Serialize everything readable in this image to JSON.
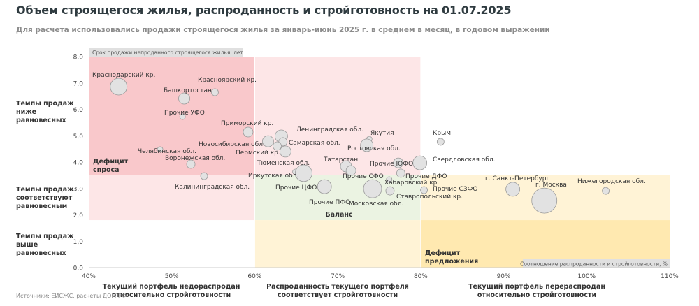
{
  "title": "Объем строящегося жилья, распроданность и стройготовность на 01.07.2025",
  "subtitle": "Для расчета использовались продажи строящегося жилья за январь-июнь 2025 г. в среднем в месяц, в годовом выражении",
  "source": "Источники: ЕИСЖС, расчеты ДОМ.РФ",
  "row_labels": [
    "Темпы продаж ниже равновесных",
    "Темпы продаж соответствуют равновесным",
    "Темпы продаж выше равновесных"
  ],
  "column_labels": [
    "Текущий портфель недораспродан относительно стройготовности",
    "Распроданность текущего портфеля соответствует стройготовности",
    "Текущий портфель перераспродан относительно стройготовности"
  ],
  "zone_labels": {
    "demand_deficit": "Дефицит спроса",
    "balance": "Баланс",
    "supply_deficit": "Дефицит предложения"
  },
  "colors": {
    "demand_deficit": "#f9c8cb",
    "light_red": "#fde6e7",
    "balance": "#ebf3e2",
    "light_yellow": "#fff3d6",
    "supply_deficit": "#ffe9b0",
    "bubble": "#e2e2e2"
  },
  "chart_data": {
    "type": "scatter",
    "bubble": true,
    "ylabel": "Срок продажи непроданного строящегося жилья, лет",
    "xlabel": "Соотношение распроданности и стройготовности, %",
    "xlim": [
      40,
      110
    ],
    "ylim": [
      0,
      8
    ],
    "x_ticks": [
      "40%",
      "50%",
      "60%",
      "70%",
      "80%",
      "90%",
      "100%",
      "110%"
    ],
    "y_ticks": [
      "0,0",
      "1,0",
      "2,0",
      "3,0",
      "4,0",
      "5,0",
      "6,0",
      "7,0",
      "8,0"
    ],
    "grid": false,
    "points": [
      {
        "label": "Краснодарский кр.",
        "x": 43.6,
        "y": 6.86,
        "size": 12
      },
      {
        "label": "Башкортостан",
        "x": 51.5,
        "y": 6.41,
        "size": 8
      },
      {
        "label": "Красноярский кр.",
        "x": 55.2,
        "y": 6.65,
        "size": 5
      },
      {
        "label": "Прочие УФО",
        "x": 51.3,
        "y": 5.72,
        "size": 4
      },
      {
        "label": "Приморский кр.",
        "x": 59.2,
        "y": 5.14,
        "size": 7
      },
      {
        "label": "Челябинская обл.",
        "x": 48.6,
        "y": 4.48,
        "size": 4
      },
      {
        "label": "Воронежская обл.",
        "x": 52.3,
        "y": 3.92,
        "size": 6
      },
      {
        "label": "Калининградская обл.",
        "x": 53.9,
        "y": 3.47,
        "size": 5
      },
      {
        "label": "Новосибирская обл.",
        "x": 61.6,
        "y": 4.79,
        "size": 8
      },
      {
        "label": "Ленинградская обл.",
        "x": 63.2,
        "y": 4.98,
        "size": 9
      },
      {
        "label": "Самарская обл.",
        "x": 63.4,
        "y": 4.77,
        "size": 6
      },
      {
        "label": "Пермский кр.",
        "x": 62.7,
        "y": 4.61,
        "size": 6
      },
      {
        "label": "Тюменская обл.",
        "x": 63.7,
        "y": 4.4,
        "size": 8
      },
      {
        "label": "Иркутская обл.",
        "x": 64.9,
        "y": 3.63,
        "size": 4
      },
      {
        "label": "Прочие ЦФО",
        "x": 65.9,
        "y": 3.58,
        "size": 12
      },
      {
        "label": "Прочие ПФО",
        "x": 68.4,
        "y": 3.07,
        "size": 10
      },
      {
        "label": "Якутия",
        "x": 73.8,
        "y": 4.87,
        "size": 4
      },
      {
        "label": "Ростовская обл.",
        "x": 73.5,
        "y": 4.64,
        "size": 9
      },
      {
        "label": "Татарстан",
        "x": 71.0,
        "y": 3.84,
        "size": 8
      },
      {
        "label": "Прочие СФО",
        "x": 71.6,
        "y": 3.68,
        "size": 7
      },
      {
        "label": "Прочие ЮФО",
        "x": 77.3,
        "y": 3.97,
        "size": 7
      },
      {
        "label": "Прочие ДФО",
        "x": 77.6,
        "y": 3.58,
        "size": 6
      },
      {
        "label": "Хабаровский кр.",
        "x": 76.2,
        "y": 3.34,
        "size": 4
      },
      {
        "label": "Московская обл.",
        "x": 74.2,
        "y": 2.99,
        "size": 13
      },
      {
        "label": "Ставропольский кр.",
        "x": 76.3,
        "y": 2.91,
        "size": 6
      },
      {
        "label": "Свердловская обл.",
        "x": 79.9,
        "y": 3.97,
        "size": 10
      },
      {
        "label": "Крым",
        "x": 82.4,
        "y": 4.77,
        "size": 5
      },
      {
        "label": "Прочие СЗФО",
        "x": 80.4,
        "y": 2.94,
        "size": 5
      },
      {
        "label": "г. Санкт-Петербург",
        "x": 91.1,
        "y": 2.97,
        "size": 10
      },
      {
        "label": "г. Москва",
        "x": 94.9,
        "y": 2.54,
        "size": 18
      },
      {
        "label": "Нижегородская обл.",
        "x": 102.3,
        "y": 2.91,
        "size": 5
      }
    ]
  }
}
